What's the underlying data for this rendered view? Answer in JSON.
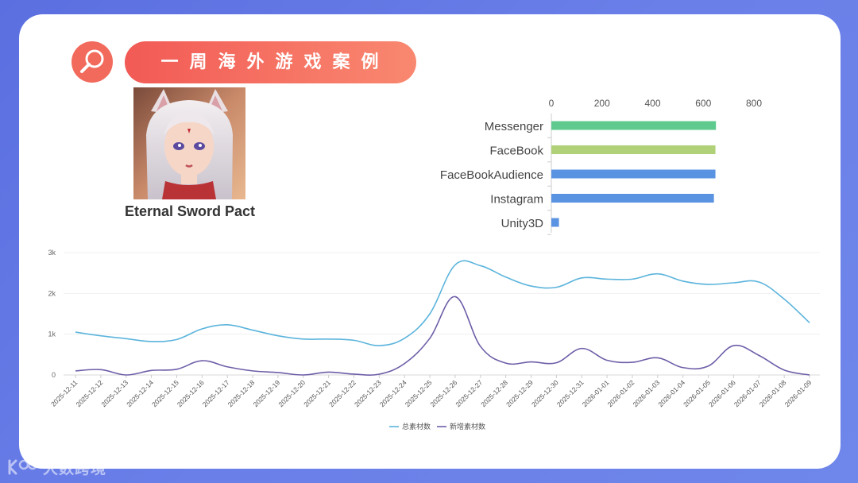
{
  "header": {
    "title": "一周海外游戏案例",
    "search_icon": "search-icon"
  },
  "game": {
    "name": "Eternal Sword Pact",
    "icon": "game-character-portrait"
  },
  "watermark": {
    "text": "大数跨境"
  },
  "colors": {
    "messenger": "#5fca8e",
    "facebook": "#b0d177",
    "facebook_audience": "#5b93e3",
    "instagram": "#5b93e3",
    "unity3d": "#5b93e3",
    "total_line": "#5bb4dc",
    "new_line": "#6e5ea8",
    "accent": "#f26a5c"
  },
  "chart_data": [
    {
      "type": "bar",
      "orientation": "horizontal",
      "categories": [
        "Messenger",
        "FaceBook",
        "FaceBookAudience",
        "Instagram",
        "Unity3D"
      ],
      "values": [
        650,
        648,
        648,
        642,
        30
      ],
      "xlim": [
        0,
        800
      ],
      "xticks": [
        0,
        200,
        400,
        600,
        800
      ],
      "tick_labels": [
        "0",
        "200",
        "400",
        "600",
        "800"
      ],
      "grid": false
    },
    {
      "type": "line",
      "x": [
        "2025-12-11",
        "2025-12-12",
        "2025-12-13",
        "2025-12-14",
        "2025-12-15",
        "2025-12-16",
        "2025-12-17",
        "2025-12-18",
        "2025-12-19",
        "2025-12-20",
        "2025-12-21",
        "2025-12-22",
        "2025-12-23",
        "2025-12-24",
        "2025-12-25",
        "2025-12-26",
        "2025-12-27",
        "2025-12-28",
        "2025-12-29",
        "2025-12-30",
        "2025-12-31",
        "2026-01-01",
        "2026-01-02",
        "2026-01-03",
        "2026-01-04",
        "2026-01-05",
        "2026-01-06",
        "2026-01-07",
        "2026-01-08",
        "2026-01-09"
      ],
      "series": [
        {
          "name": "总素材数",
          "values": [
            1050,
            960,
            890,
            820,
            870,
            1130,
            1230,
            1100,
            960,
            880,
            880,
            850,
            720,
            900,
            1500,
            2700,
            2680,
            2400,
            2180,
            2150,
            2380,
            2350,
            2350,
            2480,
            2300,
            2220,
            2260,
            2280,
            1860,
            1280
          ]
        },
        {
          "name": "新增素材数",
          "values": [
            100,
            130,
            0,
            110,
            140,
            350,
            200,
            100,
            60,
            0,
            70,
            20,
            20,
            280,
            900,
            1920,
            700,
            290,
            320,
            300,
            650,
            360,
            310,
            420,
            180,
            220,
            720,
            480,
            120,
            0
          ]
        }
      ],
      "ylim": [
        0,
        3000
      ],
      "yticks": [
        0,
        1000,
        2000,
        3000
      ],
      "ytick_labels": [
        "0",
        "1k",
        "2k",
        "3k"
      ],
      "legend": "bottom-center",
      "grid": true
    }
  ]
}
